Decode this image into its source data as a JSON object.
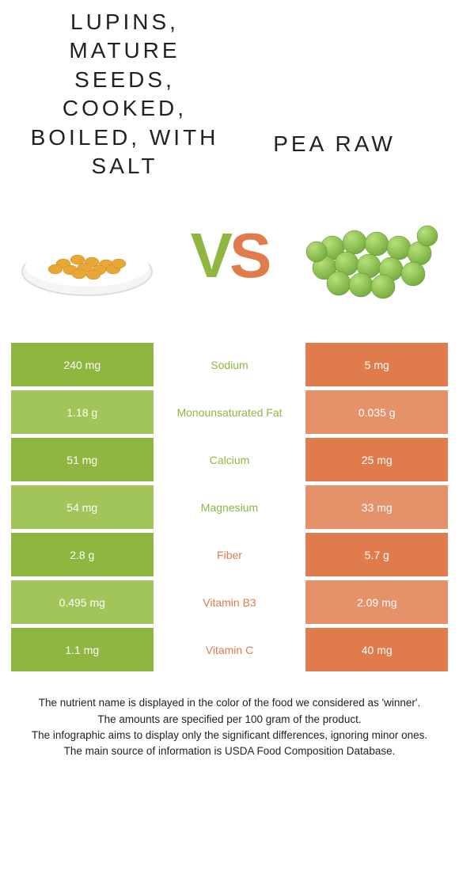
{
  "colors": {
    "left": "#8fb63e",
    "right": "#e07b4c",
    "row_alt_left": "#a2c559",
    "row_alt_right": "#e5916a",
    "mid_bg": "#ffffff",
    "text_dark": "#222222"
  },
  "foods": {
    "left_title": "Lupins, mature seeds, cooked, boiled, with salt",
    "right_title": "Pea raw"
  },
  "vs": {
    "v": "V",
    "s": "S"
  },
  "nutrients": [
    {
      "name": "Sodium",
      "left": "240 mg",
      "right": "5 mg",
      "winner": "left"
    },
    {
      "name": "Monounsaturated Fat",
      "left": "1.18 g",
      "right": "0.035 g",
      "winner": "left"
    },
    {
      "name": "Calcium",
      "left": "51 mg",
      "right": "25 mg",
      "winner": "left"
    },
    {
      "name": "Magnesium",
      "left": "54 mg",
      "right": "33 mg",
      "winner": "left"
    },
    {
      "name": "Fiber",
      "left": "2.8 g",
      "right": "5.7 g",
      "winner": "right"
    },
    {
      "name": "Vitamin B3",
      "left": "0.495 mg",
      "right": "2.09 mg",
      "winner": "right"
    },
    {
      "name": "Vitamin C",
      "left": "1.1 mg",
      "right": "40 mg",
      "winner": "right"
    }
  ],
  "footer_lines": [
    "The nutrient name is displayed in the color of the food we considered as 'winner'.",
    "The amounts are specified per 100 gram of the product.",
    "The infographic aims to display only the significant differences, ignoring minor ones.",
    "The main source of information is USDA Food Composition Database."
  ]
}
